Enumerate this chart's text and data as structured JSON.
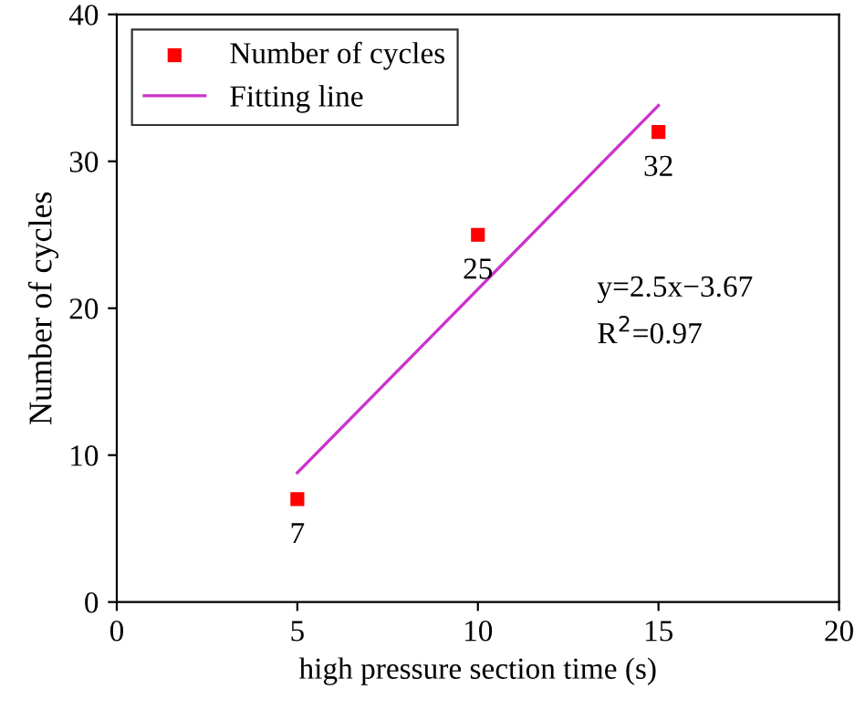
{
  "chart_data": {
    "type": "scatter",
    "xlabel": "high pressure section time (s)",
    "ylabel": "Number of cycles",
    "series": [
      {
        "name": "Number of cycles",
        "color": "#ff0000",
        "marker": "square",
        "x": [
          5,
          10,
          15
        ],
        "values": [
          7,
          25,
          32
        ],
        "data_labels": true
      },
      {
        "name": "Fitting line",
        "type": "line",
        "color": "#cc33cc",
        "marker": "none",
        "line_style": "solid",
        "x": [
          5,
          15
        ],
        "values": [
          8.8,
          33.8
        ]
      }
    ],
    "annotations": [
      "y=2.5x−3.67",
      "R$^{2}$=0.97"
    ],
    "xlim": [
      0,
      20
    ],
    "xticks": [
      0,
      5,
      10,
      15,
      20
    ],
    "ylim": [
      0,
      40
    ],
    "yticks": [
      0,
      10,
      20,
      30,
      40
    ],
    "grid": false,
    "legend": "top left"
  }
}
